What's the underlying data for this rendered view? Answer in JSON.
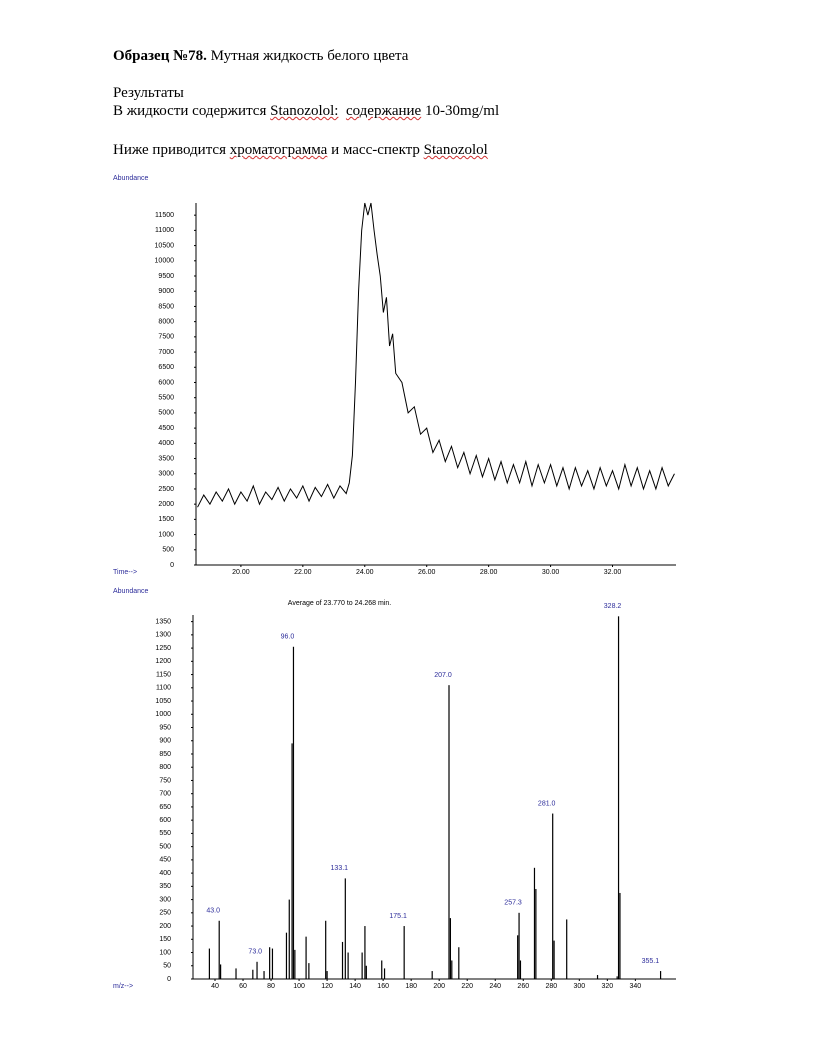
{
  "document": {
    "title_bold": "Образец №78.",
    "title_rest": "Мутная жидкость белого цвета",
    "results_heading": "Результаты",
    "line1": [
      "В жидкости содержится",
      "Stanozolol:",
      "содержание",
      "10-30mg/ml"
    ],
    "line2": [
      "Ниже приводится",
      "хроматограмма",
      "и масс-спектр",
      "Stanozolol"
    ]
  },
  "chart_data": [
    {
      "type": "line",
      "ylabel": "Abundance",
      "xlabel": "Time-->",
      "color": "#000000",
      "xlim": [
        18.55,
        34.05
      ],
      "ylim": [
        0,
        11900
      ],
      "xticks": [
        {
          "value": 20,
          "label": "20.00"
        },
        {
          "value": 22,
          "label": "22.00"
        },
        {
          "value": 24,
          "label": "24.00"
        },
        {
          "value": 26,
          "label": "26.00"
        },
        {
          "value": 28,
          "label": "28.00"
        },
        {
          "value": 30,
          "label": "30.00"
        },
        {
          "value": 32,
          "label": "32.00"
        }
      ],
      "yticks": [
        0,
        500,
        1000,
        1500,
        2000,
        2500,
        3000,
        3500,
        4000,
        4500,
        5000,
        5500,
        6000,
        6500,
        7000,
        7500,
        8000,
        8500,
        9000,
        9500,
        10000,
        10500,
        11000,
        11500
      ],
      "x": [
        18.6,
        18.8,
        19.0,
        19.2,
        19.4,
        19.6,
        19.8,
        20.0,
        20.2,
        20.4,
        20.6,
        20.8,
        21.0,
        21.2,
        21.4,
        21.6,
        21.8,
        22.0,
        22.2,
        22.4,
        22.6,
        22.8,
        23.0,
        23.2,
        23.4,
        23.5,
        23.6,
        23.7,
        23.8,
        23.9,
        24.0,
        24.1,
        24.2,
        24.3,
        24.4,
        24.5,
        24.6,
        24.7,
        24.8,
        24.9,
        25.0,
        25.2,
        25.4,
        25.6,
        25.8,
        26.0,
        26.2,
        26.4,
        26.6,
        26.8,
        27.0,
        27.2,
        27.4,
        27.6,
        27.8,
        28.0,
        28.2,
        28.4,
        28.6,
        28.8,
        29.0,
        29.2,
        29.4,
        29.6,
        29.8,
        30.0,
        30.2,
        30.4,
        30.6,
        30.8,
        31.0,
        31.2,
        31.4,
        31.6,
        31.8,
        32.0,
        32.2,
        32.4,
        32.6,
        32.8,
        33.0,
        33.2,
        33.4,
        33.6,
        33.8,
        34.0
      ],
      "values": [
        1900,
        2300,
        2000,
        2400,
        2100,
        2500,
        2000,
        2400,
        2100,
        2600,
        2000,
        2400,
        2150,
        2550,
        2100,
        2500,
        2200,
        2600,
        2100,
        2550,
        2250,
        2650,
        2200,
        2600,
        2350,
        2700,
        3600,
        6000,
        9000,
        11000,
        11900,
        11500,
        11900,
        11000,
        10200,
        9500,
        8300,
        8800,
        7200,
        7600,
        6300,
        6000,
        5000,
        5200,
        4300,
        4500,
        3700,
        4100,
        3400,
        3900,
        3200,
        3700,
        3000,
        3600,
        2900,
        3500,
        2800,
        3400,
        2700,
        3300,
        2700,
        3400,
        2600,
        3300,
        2700,
        3300,
        2600,
        3200,
        2500,
        3200,
        2600,
        3100,
        2500,
        3200,
        2600,
        3100,
        2500,
        3300,
        2600,
        3200,
        2500,
        3100,
        2500,
        3200,
        2600,
        3000
      ]
    },
    {
      "type": "bar",
      "ylabel": "Abundance",
      "xlabel": "m/z-->",
      "subtitle": "Average of 23.770 to 24.268 min.",
      "color": "#000000",
      "xlim": [
        24.3,
        369
      ],
      "ylim": [
        0,
        1375
      ],
      "xticks": [
        40,
        60,
        80,
        100,
        120,
        140,
        160,
        180,
        200,
        220,
        240,
        260,
        280,
        300,
        320,
        340
      ],
      "yticks": [
        0,
        50,
        100,
        150,
        200,
        250,
        300,
        350,
        400,
        450,
        500,
        550,
        600,
        650,
        700,
        750,
        800,
        850,
        900,
        950,
        1000,
        1050,
        1100,
        1150,
        1200,
        1250,
        1300,
        1350
      ],
      "x": [
        36,
        43,
        44,
        55,
        67,
        70,
        75,
        79,
        81,
        91,
        93,
        95,
        96,
        97,
        105,
        107,
        119,
        120,
        131,
        133,
        135,
        145,
        147,
        148,
        159,
        161,
        175,
        195,
        207,
        208,
        209,
        214,
        256,
        257,
        258,
        268,
        269,
        281,
        282,
        291,
        313,
        327,
        328,
        329,
        358
      ],
      "values": [
        115,
        220,
        55,
        40,
        35,
        65,
        30,
        120,
        115,
        175,
        300,
        890,
        1255,
        110,
        160,
        60,
        220,
        30,
        140,
        380,
        100,
        100,
        200,
        50,
        70,
        40,
        200,
        30,
        1110,
        230,
        70,
        120,
        165,
        250,
        70,
        420,
        340,
        625,
        145,
        225,
        15,
        10,
        1370,
        325,
        30
      ],
      "annotations": [
        {
          "x": 43,
          "text": "43.0"
        },
        {
          "x": 73,
          "text": "73.0"
        },
        {
          "x": 96,
          "text": "96.0"
        },
        {
          "x": 133,
          "text": "133.1"
        },
        {
          "x": 175,
          "text": "175.1"
        },
        {
          "x": 207,
          "text": "207.0"
        },
        {
          "x": 257,
          "text": "257.3"
        },
        {
          "x": 281,
          "text": "281.0"
        },
        {
          "x": 328,
          "text": "328.2"
        },
        {
          "x": 355,
          "text": "355.1"
        }
      ]
    }
  ]
}
